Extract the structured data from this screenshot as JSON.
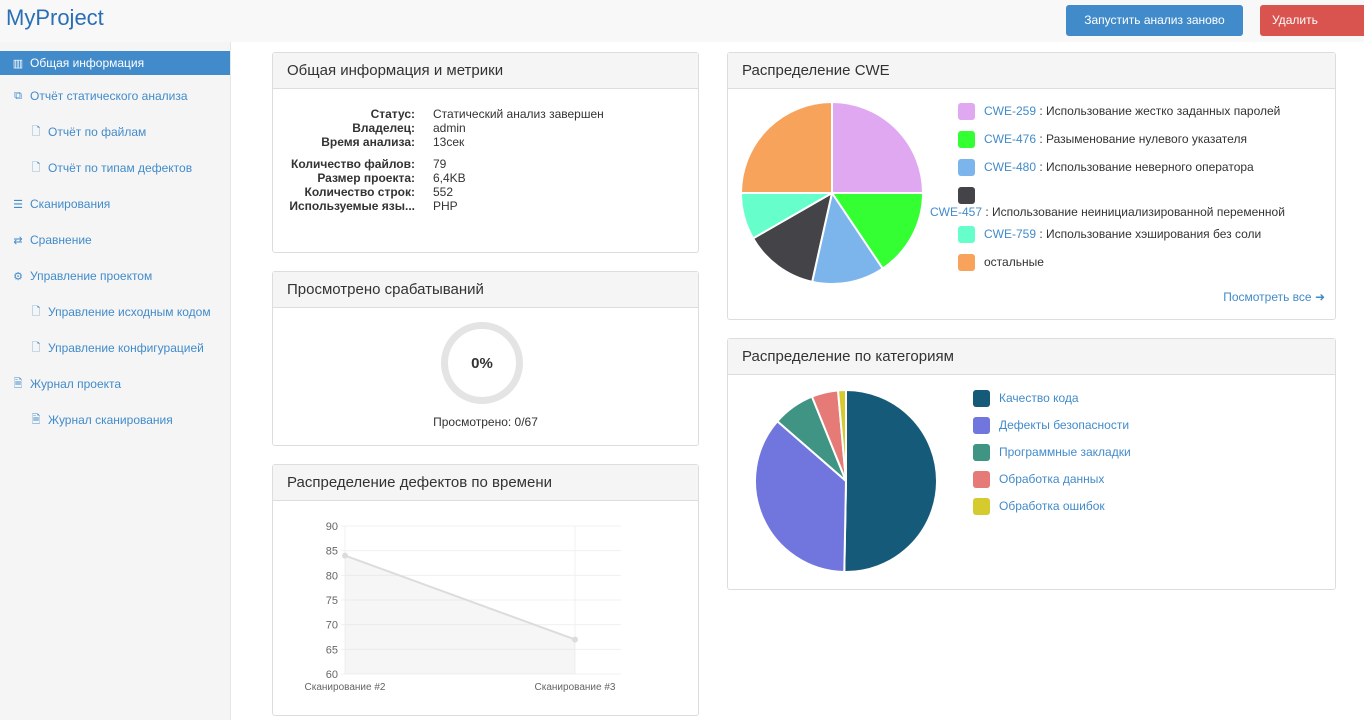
{
  "header": {
    "brand": "MyProject",
    "rerun_label": "Запустить анализ заново",
    "delete_label": "Удалить проект"
  },
  "sidebar": {
    "items": [
      {
        "label": "Общая информация",
        "icon": "bar-chart-icon",
        "glyph": "▥",
        "sub": false,
        "active": true
      },
      {
        "label": "Отчёт статического анализа",
        "icon": "copy-icon",
        "glyph": "⧉",
        "sub": false
      },
      {
        "label": "Отчёт по файлам",
        "icon": "file-icon",
        "glyph": "🗋",
        "sub": true
      },
      {
        "label": "Отчёт по типам дефектов",
        "icon": "file-icon",
        "glyph": "🗋",
        "sub": true
      },
      {
        "label": "Сканирования",
        "icon": "list-icon",
        "glyph": "☰",
        "sub": false
      },
      {
        "label": "Сравнение",
        "icon": "exchange-icon",
        "glyph": "⇄",
        "sub": false
      },
      {
        "label": "Управление проектом",
        "icon": "gear-icon",
        "glyph": "⚙",
        "sub": false
      },
      {
        "label": "Управление исходным кодом",
        "icon": "file-icon",
        "glyph": "🗋",
        "sub": true
      },
      {
        "label": "Управление конфигурацией",
        "icon": "file-icon",
        "glyph": "🗋",
        "sub": true
      },
      {
        "label": "Журнал проекта",
        "icon": "file-text-icon",
        "glyph": "🗎",
        "sub": false
      },
      {
        "label": "Журнал сканирования",
        "icon": "file-text-icon",
        "glyph": "🗎",
        "sub": true
      }
    ]
  },
  "info": {
    "title": "Общая информация и метрики",
    "group1": [
      {
        "k": "Статус:",
        "v": "Статический анализ завершен"
      },
      {
        "k": "Владелец:",
        "v": "admin"
      },
      {
        "k": "Время анализа:",
        "v": "13сек"
      }
    ],
    "group2": [
      {
        "k": "Количество файлов:",
        "v": "79"
      },
      {
        "k": "Размер проекта:",
        "v": "6,4KB"
      },
      {
        "k": "Количество строк:",
        "v": "552"
      },
      {
        "k": "Используемые язы...",
        "v": "PHP"
      }
    ]
  },
  "reviewed": {
    "title": "Просмотрено срабатываний",
    "percent_label": "0%",
    "percent": 0,
    "caption": "Просмотрено: 0/67"
  },
  "timeline": {
    "title": "Распределение дефектов по времени"
  },
  "cwe": {
    "title": "Распределение CWE",
    "view_all": "Посмотреть все",
    "legend": [
      {
        "code": "CWE-259",
        "text": " : Использование жестко заданных паролей",
        "color": "#e0a8f0"
      },
      {
        "code": "CWE-476",
        "text": " : Разыменование нулевого указателя",
        "color": "#33ff33"
      },
      {
        "code": "CWE-480",
        "text": " : Использование неверного оператора",
        "color": "#7cb5ec"
      },
      {
        "code": "CWE-457",
        "text": " : Использование неинициализированной переменной",
        "color": "#434348"
      },
      {
        "code": "CWE-759",
        "text": " : Использование хэширования без соли",
        "color": "#66ffcc"
      },
      {
        "code": "",
        "text": "остальные",
        "color": "#f7a35c"
      }
    ]
  },
  "categories": {
    "title": "Распределение по категориям",
    "legend": [
      {
        "text": "Качество кода",
        "color": "#155a78"
      },
      {
        "text": "Дефекты безопасности",
        "color": "#7176de"
      },
      {
        "text": "Программные закладки",
        "color": "#3f9483"
      },
      {
        "text": "Обработка данных",
        "color": "#e57a77"
      },
      {
        "text": "Обработка ошибок",
        "color": "#d6cb2e"
      }
    ]
  },
  "chart_data": [
    {
      "type": "line",
      "categories": [
        "Сканирование #2",
        "Сканирование #3"
      ],
      "values": [
        84,
        67
      ],
      "ylim": [
        60,
        90
      ],
      "yticks": [
        "90",
        "85",
        "80",
        "75",
        "70",
        "65",
        "60"
      ],
      "grid": true
    },
    {
      "type": "pie",
      "categories": [
        "CWE-259",
        "CWE-476",
        "CWE-480",
        "CWE-457",
        "CWE-759",
        "остальные"
      ],
      "values": [
        25,
        15.6,
        12.9,
        13.2,
        8.3,
        25
      ]
    },
    {
      "type": "pie",
      "categories": [
        "Качество кода",
        "Дефекты безопасности",
        "Программные закладки",
        "Обработка данных",
        "Обработка ошибок"
      ],
      "values": [
        50.3,
        36.1,
        7.5,
        4.7,
        1.4
      ]
    }
  ]
}
